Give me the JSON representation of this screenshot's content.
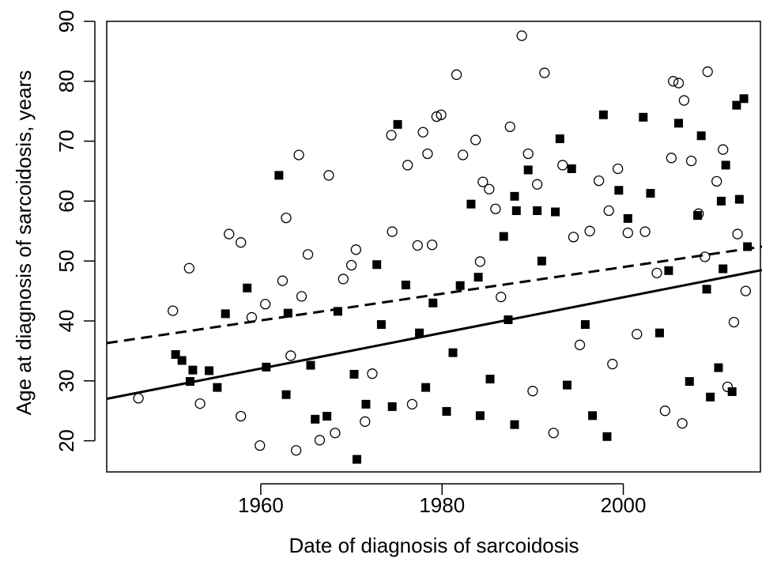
{
  "chart_data": {
    "type": "scatter",
    "xlabel": "Date of diagnosis of sarcoidosis",
    "ylabel": "Age at diagnosis of sarcoidosis, years",
    "xlim": [
      1943,
      2015.3
    ],
    "ylim": [
      14.8,
      90
    ],
    "xticks": [
      1960,
      1980,
      2000
    ],
    "yticks": [
      20,
      30,
      40,
      50,
      60,
      70,
      80,
      90
    ],
    "series": [
      {
        "marker": "open-circle",
        "color": "#000000",
        "x": [
          1946.5,
          1950.3,
          1952.1,
          1953.3,
          1956.5,
          1957.8,
          1957.8,
          1959,
          1959.9,
          1960.5,
          1962.4,
          1962.8,
          1963.3,
          1963.9,
          1964.2,
          1964.5,
          1965.2,
          1966.5,
          1967.5,
          1968.2,
          1969.1,
          1970,
          1970.5,
          1971.5,
          1972.3,
          1974.4,
          1974.5,
          1976.2,
          1976.7,
          1977.3,
          1977.9,
          1978.4,
          1978.9,
          1979.4,
          1979.9,
          1981.6,
          1982.3,
          1983.7,
          1984.2,
          1984.5,
          1985.2,
          1985.9,
          1986.5,
          1987.5,
          1988.8,
          1989.5,
          1990,
          1990.5,
          1991.3,
          1992.3,
          1993.3,
          1994.5,
          1995.2,
          1996.3,
          1997.3,
          1998.4,
          1998.8,
          1999.4,
          2000.5,
          2001.5,
          2002.4,
          2003.7,
          2004.6,
          2005.3,
          2005.5,
          2006.1,
          2006.7,
          2006.5,
          2007.5,
          2008.3,
          2009.3,
          2010.3,
          2011,
          2011.5,
          2012.6,
          2013.5,
          2012.2,
          2009
        ],
        "values": [
          27.1,
          41.7,
          48.8,
          26.2,
          54.5,
          53.1,
          24.1,
          40.6,
          19.2,
          42.8,
          46.7,
          57.2,
          34.2,
          18.4,
          67.7,
          44.1,
          51.1,
          20.1,
          64.3,
          21.3,
          47,
          49.3,
          51.9,
          23.2,
          31.2,
          71,
          54.9,
          66,
          26.1,
          52.6,
          71.5,
          67.9,
          52.7,
          74.1,
          74.4,
          81.1,
          67.7,
          70.2,
          49.9,
          63.2,
          62,
          58.7,
          44,
          72.4,
          87.6,
          67.9,
          28.3,
          62.8,
          81.4,
          21.3,
          66,
          54,
          36,
          55,
          63.4,
          58.4,
          32.8,
          65.4,
          54.7,
          37.8,
          54.9,
          48,
          25,
          67.2,
          80,
          79.7,
          76.8,
          22.9,
          66.7,
          57.9,
          81.6,
          63.3,
          68.6,
          29,
          54.5,
          45,
          39.8,
          50.7
        ]
      },
      {
        "marker": "filled-square",
        "color": "#000000",
        "x": [
          1950.6,
          1951.3,
          1952.5,
          1952.2,
          1954.3,
          1955.2,
          1956.1,
          1958.5,
          1960.6,
          1962,
          1962.8,
          1963,
          1965.5,
          1966,
          1967.3,
          1968.5,
          1970.3,
          1970.6,
          1971.6,
          1972.8,
          1973.3,
          1974.5,
          1975.1,
          1976,
          1977.5,
          1978.2,
          1979,
          1980.5,
          1981.2,
          1982,
          1983.2,
          1984,
          1984.2,
          1985.3,
          1986.8,
          1987.3,
          1988,
          1988.2,
          1988,
          1989.5,
          1990.5,
          1991,
          1992.5,
          1993,
          1993.8,
          1994.3,
          1995.8,
          1996.6,
          1997.8,
          1998.2,
          1999.5,
          2000.5,
          2002.2,
          2003,
          2004,
          2005,
          2006.1,
          2007.3,
          2008.2,
          2008.6,
          2009.2,
          2009.6,
          2010.8,
          2011.3,
          2012,
          2012.5,
          2013.3,
          2013.7,
          2012.8,
          2011,
          2010.5
        ],
        "values": [
          34.4,
          33.4,
          31.8,
          29.9,
          31.7,
          28.9,
          41.2,
          45.5,
          32.3,
          64.3,
          27.7,
          41.3,
          32.6,
          23.6,
          24.1,
          41.6,
          31.1,
          16.9,
          26.1,
          49.4,
          39.4,
          25.7,
          72.8,
          46,
          38,
          28.9,
          43,
          24.9,
          34.7,
          45.9,
          59.5,
          47.3,
          24.2,
          30.3,
          54.1,
          40.2,
          60.8,
          58.4,
          22.7,
          65.2,
          58.4,
          50,
          58.2,
          70.4,
          29.3,
          65.4,
          39.4,
          24.2,
          74.4,
          20.7,
          61.8,
          57.1,
          74,
          61.3,
          38,
          48.4,
          73,
          29.9,
          57.6,
          70.9,
          45.3,
          27.3,
          60,
          66,
          28.2,
          76,
          77.1,
          52.4,
          60.3,
          48.7,
          32.2
        ]
      }
    ],
    "lines": [
      {
        "dash": true,
        "color": "#000000",
        "x": [
          1943,
          2015.3
        ],
        "values": [
          36.3,
          52.4
        ]
      },
      {
        "dash": false,
        "color": "#000000",
        "x": [
          1943,
          2015.3
        ],
        "values": [
          27,
          48.5
        ]
      }
    ]
  }
}
